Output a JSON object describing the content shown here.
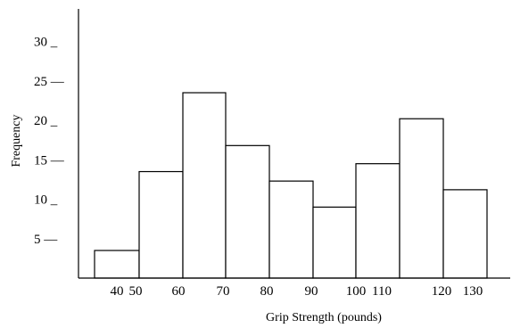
{
  "chart_data": {
    "type": "bar",
    "xlabel": "Grip Strength (pounds)",
    "ylabel": "Frequency",
    "y_ticks": [
      {
        "value": 5,
        "label": "5 —"
      },
      {
        "value": 10,
        "label": "10 _"
      },
      {
        "value": 15,
        "label": "15 —"
      },
      {
        "value": 20,
        "label": "20 _"
      },
      {
        "value": 25,
        "label": "25 —"
      },
      {
        "value": 30,
        "label": "30 _"
      }
    ],
    "x_ticks": [
      {
        "value": 40,
        "label": "40"
      },
      {
        "value": 50,
        "label": "50"
      },
      {
        "value": 60,
        "label": "60"
      },
      {
        "value": 70,
        "label": "70"
      },
      {
        "value": 80,
        "label": "80"
      },
      {
        "value": 90,
        "label": "90"
      },
      {
        "value": 100,
        "label": "100"
      },
      {
        "value": 110,
        "label": "110"
      },
      {
        "value": 120,
        "label": "120"
      },
      {
        "value": 130,
        "label": "130"
      }
    ],
    "bins": [
      {
        "start": 40,
        "end": 50,
        "value": 3.5
      },
      {
        "start": 50,
        "end": 60,
        "value": 13.5
      },
      {
        "start": 60,
        "end": 70,
        "value": 23.5
      },
      {
        "start": 70,
        "end": 80,
        "value": 16.8
      },
      {
        "start": 80,
        "end": 90,
        "value": 12.3
      },
      {
        "start": 90,
        "end": 100,
        "value": 9
      },
      {
        "start": 100,
        "end": 110,
        "value": 14.5
      },
      {
        "start": 110,
        "end": 120,
        "value": 20.2
      },
      {
        "start": 120,
        "end": 130,
        "value": 11.2
      }
    ],
    "ylim": [
      0,
      34
    ],
    "xlim": [
      40,
      130
    ],
    "grid": false
  }
}
